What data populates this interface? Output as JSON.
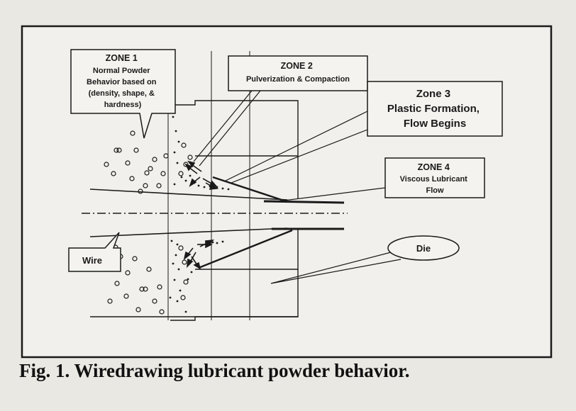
{
  "callouts": {
    "zone1": {
      "lines": [
        "ZONE 1",
        "Normal Powder",
        "Behavior based on",
        "(density, shape,  &",
        "hardness)"
      ]
    },
    "zone2": {
      "lines": [
        "ZONE 2",
        "Pulverization & Compaction"
      ]
    },
    "zone3": {
      "lines": [
        "Zone 3",
        "Plastic Formation,",
        "Flow Begins"
      ]
    },
    "zone4": {
      "lines": [
        "ZONE 4",
        "Viscous Lubricant",
        "Flow"
      ]
    },
    "wire": {
      "label": "Wire"
    },
    "die": {
      "label": "Die"
    }
  },
  "caption": "Fig. 1. Wiredrawing lubricant powder behavior.",
  "colors": {
    "ink": "#1a1a1a",
    "paper": "#e9e8e3",
    "box_fill": "#f4f3ef"
  }
}
